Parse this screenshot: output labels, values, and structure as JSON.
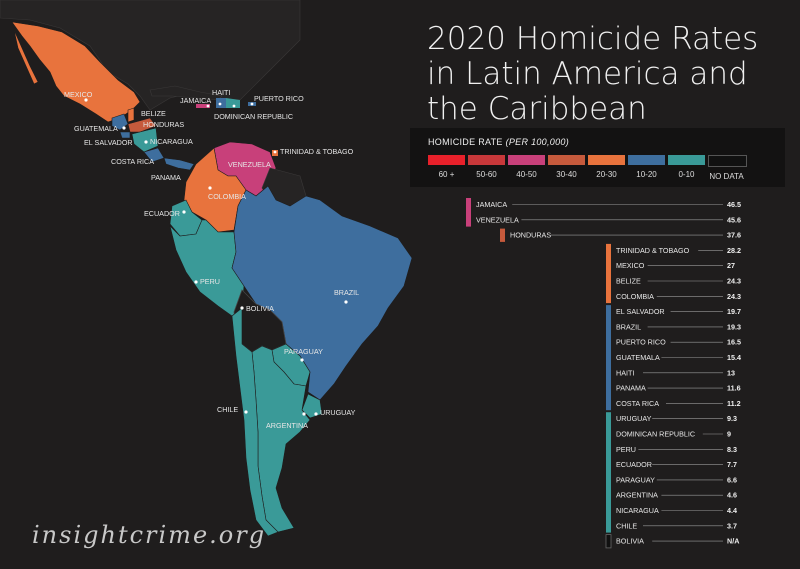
{
  "title_lines": [
    "2020 Homicide Rates",
    "in Latin America and",
    "the Caribbean"
  ],
  "watermark": "insightcrime.org",
  "legend": {
    "title": "HOMICIDE RATE",
    "title_unit": "(PER 100,000)",
    "items": [
      {
        "label": "60 +",
        "color": "#e8202a"
      },
      {
        "label": "50-60",
        "color": "#c8383a"
      },
      {
        "label": "40-50",
        "color": "#c8407a"
      },
      {
        "label": "30-40",
        "color": "#c65a3c"
      },
      {
        "label": "20-30",
        "color": "#e8733d"
      },
      {
        "label": "10-20",
        "color": "#3e6e9e"
      },
      {
        "label": "0-10",
        "color": "#3a9a98"
      },
      {
        "label": "NO DATA",
        "color": "#111111"
      }
    ]
  },
  "map_labels": [
    {
      "name": "MEXICO"
    },
    {
      "name": "BELIZE"
    },
    {
      "name": "HONDURAS"
    },
    {
      "name": "GUATEMALA"
    },
    {
      "name": "NICARAGUA"
    },
    {
      "name": "EL SALVADOR"
    },
    {
      "name": "COSTA RICA"
    },
    {
      "name": "PANAMA"
    },
    {
      "name": "JAMAICA"
    },
    {
      "name": "HAITI"
    },
    {
      "name": "PUERTO RICO"
    },
    {
      "name": "DOMINICAN REPUBLIC"
    },
    {
      "name": "TRINIDAD & TOBAGO"
    },
    {
      "name": "VENEZUELA"
    },
    {
      "name": "COLOMBIA"
    },
    {
      "name": "ECUADOR"
    },
    {
      "name": "PERU"
    },
    {
      "name": "BOLIVIA"
    },
    {
      "name": "BRAZIL"
    },
    {
      "name": "PARAGUAY"
    },
    {
      "name": "CHILE"
    },
    {
      "name": "URUGUAY"
    },
    {
      "name": "ARGENTINA"
    }
  ],
  "chart_data": {
    "type": "bar",
    "title": "2020 Homicide Rates in Latin America and the Caribbean",
    "unit": "per 100,000",
    "rows": [
      {
        "country": "JAMAICA",
        "value": 46.5,
        "label": "46.5",
        "color": "#c8407a"
      },
      {
        "country": "VENEZUELA",
        "value": 45.6,
        "label": "45.6",
        "color": "#c8407a"
      },
      {
        "country": "HONDURAS",
        "value": 37.6,
        "label": "37.6",
        "color": "#c65a3c"
      },
      {
        "country": "TRINIDAD & TOBAGO",
        "value": 28.2,
        "label": "28.2",
        "color": "#e8733d"
      },
      {
        "country": "MEXICO",
        "value": 27,
        "label": "27",
        "color": "#e8733d"
      },
      {
        "country": "BELIZE",
        "value": 24.3,
        "label": "24.3",
        "color": "#e8733d"
      },
      {
        "country": "COLOMBIA",
        "value": 24.3,
        "label": "24.3",
        "color": "#e8733d"
      },
      {
        "country": "EL SALVADOR",
        "value": 19.7,
        "label": "19.7",
        "color": "#3e6e9e"
      },
      {
        "country": "BRAZIL",
        "value": 19.3,
        "label": "19.3",
        "color": "#3e6e9e"
      },
      {
        "country": "PUERTO RICO",
        "value": 16.5,
        "label": "16.5",
        "color": "#3e6e9e"
      },
      {
        "country": "GUATEMALA",
        "value": 15.4,
        "label": "15.4",
        "color": "#3e6e9e"
      },
      {
        "country": "HAITI",
        "value": 13,
        "label": "13",
        "color": "#3e6e9e"
      },
      {
        "country": "PANAMA",
        "value": 11.6,
        "label": "11.6",
        "color": "#3e6e9e"
      },
      {
        "country": "COSTA RICA",
        "value": 11.2,
        "label": "11.2",
        "color": "#3e6e9e"
      },
      {
        "country": "URUGUAY",
        "value": 9.3,
        "label": "9.3",
        "color": "#3a9a98"
      },
      {
        "country": "DOMINICAN REPUBLIC",
        "value": 9,
        "label": "9",
        "color": "#3a9a98"
      },
      {
        "country": "PERU",
        "value": 8.3,
        "label": "8.3",
        "color": "#3a9a98"
      },
      {
        "country": "ECUADOR",
        "value": 7.7,
        "label": "7.7",
        "color": "#3a9a98"
      },
      {
        "country": "PARAGUAY",
        "value": 6.6,
        "label": "6.6",
        "color": "#3a9a98"
      },
      {
        "country": "ARGENTINA",
        "value": 4.6,
        "label": "4.6",
        "color": "#3a9a98"
      },
      {
        "country": "NICARAGUA",
        "value": 4.4,
        "label": "4.4",
        "color": "#3a9a98"
      },
      {
        "country": "CHILE",
        "value": 3.7,
        "label": "3.7",
        "color": "#3a9a98"
      },
      {
        "country": "BOLIVIA",
        "value": null,
        "label": "N/A",
        "color": "#111111"
      }
    ]
  }
}
